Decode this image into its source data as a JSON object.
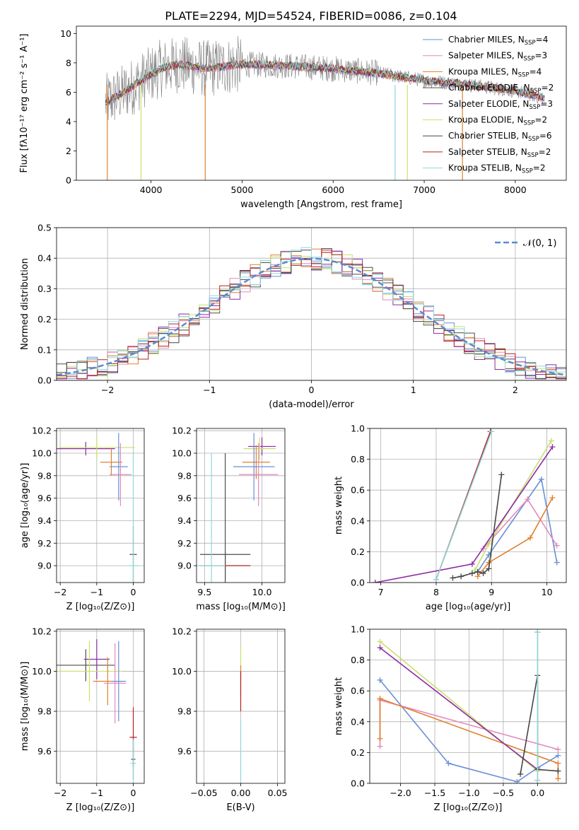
{
  "page_title": "PLATE=2294, MJD=54524, FIBERID=0086, z=0.104",
  "palette": [
    "#6a8fd6",
    "#e589bd",
    "#e0802d",
    "#4d4d4d",
    "#8e2aa2",
    "#c8e06b",
    "#464646",
    "#b22222",
    "#8ed8db"
  ],
  "chart_data": [
    {
      "id": "spectrum",
      "type": "line",
      "title": "PLATE=2294, MJD=54524, FIBERID=0086, z=0.104",
      "xlabel": "wavelength [Angstrom, rest frame]",
      "ylabel": "Flux [fλ10⁻¹⁷ erg cm⁻² s⁻¹ A⁻¹]",
      "xlim": [
        3180,
        8560
      ],
      "ylim": [
        0,
        10.5
      ],
      "xticks": [
        "4000",
        "5000",
        "6000",
        "7000",
        "8000"
      ],
      "xtick_values": [
        4000,
        5000,
        6000,
        7000,
        8000
      ],
      "yticks": [
        "0",
        "2",
        "4",
        "6",
        "8",
        "10"
      ],
      "ytick_values": [
        0,
        2,
        4,
        6,
        8,
        10
      ],
      "continuum_x": [
        3500,
        3700,
        3900,
        4100,
        4300,
        4600,
        5000,
        5500,
        6000,
        6500,
        7000,
        7500,
        8000,
        8320
      ],
      "continuum_y": [
        5.3,
        6.0,
        6.8,
        7.6,
        7.9,
        7.6,
        7.9,
        7.8,
        7.6,
        7.3,
        6.8,
        6.5,
        6.1,
        5.6
      ],
      "series": [
        {
          "name": "Chabrier MILES, N_SSP=4",
          "label_main": "Chabrier MILES, N",
          "label_sub": "SSP",
          "label_end": "=4",
          "color": "#6a8fd6"
        },
        {
          "name": "Salpeter MILES, N_SSP=3",
          "label_main": "Salpeter MILES, N",
          "label_sub": "SSP",
          "label_end": "=3",
          "color": "#e589bd"
        },
        {
          "name": "Kroupa MILES, N_SSP=4",
          "label_main": "Kroupa MILES, N",
          "label_sub": "SSP",
          "label_end": "=4",
          "color": "#e0802d"
        },
        {
          "name": "Chabrier ELODIE, N_SSP=2",
          "label_main": "Chabrier ELODIE, N",
          "label_sub": "SSP",
          "label_end": "=2",
          "color": "#4d4d4d"
        },
        {
          "name": "Salpeter ELODIE, N_SSP=3",
          "label_main": "Salpeter ELODIE, N",
          "label_sub": "SSP",
          "label_end": "=3",
          "color": "#8e2aa2"
        },
        {
          "name": "Kroupa ELODIE, N_SSP=2",
          "label_main": "Kroupa ELODIE, N",
          "label_sub": "SSP",
          "label_end": "=2",
          "color": "#c8e06b"
        },
        {
          "name": "Chabrier STELIB, N_SSP=6",
          "label_main": "Chabrier STELIB, N",
          "label_sub": "SSP",
          "label_end": "=6",
          "color": "#464646"
        },
        {
          "name": "Salpeter STELIB, N_SSP=2",
          "label_main": "Salpeter STELIB, N",
          "label_sub": "SSP",
          "label_end": "=2",
          "color": "#b22222"
        },
        {
          "name": "Kroupa STELIB, N_SSP=2",
          "label_main": "Kroupa STELIB, N",
          "label_sub": "SSP",
          "label_end": "=2",
          "color": "#8ed8db"
        }
      ],
      "legend": "top-right",
      "grid": false
    },
    {
      "id": "residuals",
      "type": "line",
      "xlabel": "(data-model)/error",
      "ylabel": "Normed distribution",
      "xlim": [
        -2.5,
        2.5
      ],
      "ylim": [
        0,
        0.5
      ],
      "xticks": [
        "−2",
        "−1",
        "0",
        "1",
        "2"
      ],
      "xtick_values": [
        -2,
        -1,
        0,
        1,
        2
      ],
      "yticks": [
        "0.0",
        "0.1",
        "0.2",
        "0.3",
        "0.4",
        "0.5"
      ],
      "ytick_values": [
        0,
        0.1,
        0.2,
        0.3,
        0.4,
        0.5
      ],
      "gaussian_label": "𝒩(0, 1)",
      "gaussian_color": "#5b8ad0",
      "bin_width": 0.1,
      "grid": true,
      "legend": "top-right"
    },
    {
      "id": "age-vs-Z",
      "type": "scatter",
      "xlabel": "Z [log₁₀(Z/Z⊙)]",
      "ylabel": "age  [log₁₀(age/yr)]",
      "xlim": [
        -2.1,
        0.3
      ],
      "ylim": [
        8.85,
        10.22
      ],
      "xticks": [
        "−2",
        "−1",
        "0"
      ],
      "xtick_values": [
        -2,
        -1,
        0
      ],
      "yticks": [
        "9.0",
        "9.2",
        "9.4",
        "9.6",
        "9.8",
        "10.0",
        "10.2"
      ],
      "ytick_values": [
        9.0,
        9.2,
        9.4,
        9.6,
        9.8,
        10.0,
        10.2
      ],
      "points": [
        {
          "x": -1.3,
          "y": 10.04,
          "xerr": 0.8,
          "yerr": 0.06,
          "color": "#8e2aa2"
        },
        {
          "x": -1.0,
          "y": 10.05,
          "xerr": 1.05,
          "yerr": 0.1,
          "color": "#c8e06b"
        },
        {
          "x": -0.6,
          "y": 9.92,
          "xerr": 0.3,
          "yerr": 0.12,
          "color": "#e0802d"
        },
        {
          "x": -0.4,
          "y": 9.88,
          "xerr": 0.25,
          "yerr": 0.3,
          "color": "#6a8fd6"
        },
        {
          "x": -0.35,
          "y": 9.81,
          "xerr": 0.3,
          "yerr": 0.28,
          "color": "#e589bd"
        },
        {
          "x": 0.0,
          "y": 9.1,
          "xerr": 0.1,
          "yerr": 0.25,
          "color": "#4d4d4d"
        },
        {
          "x": 0.0,
          "y": 9.0,
          "xerr": 0.12,
          "yerr": 1.0,
          "color": "#8ed8db"
        }
      ],
      "grid": true
    },
    {
      "id": "age-vs-mass",
      "type": "scatter",
      "xlabel": "mass [log₁₀(M/M⊙)]",
      "ylabel": "",
      "xlim": [
        9.43,
        10.2
      ],
      "ylim": [
        8.85,
        10.22
      ],
      "xticks": [
        "9.5",
        "10.0"
      ],
      "xtick_values": [
        9.5,
        10.0
      ],
      "yticks": [
        "9.0",
        "9.2",
        "9.4",
        "9.6",
        "9.8",
        "10.0",
        "10.2"
      ],
      "ytick_values": [
        9.0,
        9.2,
        9.4,
        9.6,
        9.8,
        10.0,
        10.2
      ],
      "points": [
        {
          "x": 10.0,
          "y": 10.06,
          "xerr": 0.12,
          "yerr": 0.08,
          "color": "#8e2aa2"
        },
        {
          "x": 9.98,
          "y": 10.04,
          "xerr": 0.14,
          "yerr": 0.1,
          "color": "#c8e06b"
        },
        {
          "x": 9.95,
          "y": 9.92,
          "xerr": 0.12,
          "yerr": 0.15,
          "color": "#e0802d"
        },
        {
          "x": 9.93,
          "y": 9.88,
          "xerr": 0.18,
          "yerr": 0.3,
          "color": "#6a8fd6"
        },
        {
          "x": 9.97,
          "y": 9.81,
          "xerr": 0.17,
          "yerr": 0.28,
          "color": "#e589bd"
        },
        {
          "x": 9.68,
          "y": 9.0,
          "xerr": 0.22,
          "yerr": 0.12,
          "color": "#b22222"
        },
        {
          "x": 9.68,
          "y": 9.1,
          "xerr": 0.22,
          "yerr": 0.9,
          "color": "#4d4d4d"
        },
        {
          "x": 9.56,
          "y": 9.0,
          "xerr": 0.12,
          "yerr": 1.0,
          "color": "#8ed8db"
        }
      ],
      "grid": true
    },
    {
      "id": "mass-weight-vs-age",
      "type": "line",
      "xlabel": "age  [log₁₀(age/yr)]",
      "ylabel": "mass weight",
      "xlim": [
        6.8,
        10.35
      ],
      "ylim": [
        0,
        1.0
      ],
      "xticks": [
        "7",
        "8",
        "9",
        "10"
      ],
      "xtick_values": [
        7,
        8,
        9,
        10
      ],
      "yticks": [
        "0.0",
        "0.2",
        "0.4",
        "0.6",
        "0.8",
        "1.0"
      ],
      "ytick_values": [
        0,
        0.2,
        0.4,
        0.6,
        0.8,
        1.0
      ],
      "series": [
        {
          "color": "#6a8fd6",
          "x": [
            8.75,
            8.95,
            9.9,
            10.18
          ],
          "y": [
            0.07,
            0.18,
            0.67,
            0.13
          ]
        },
        {
          "color": "#e589bd",
          "x": [
            8.85,
            9.65,
            10.18
          ],
          "y": [
            0.22,
            0.54,
            0.24
          ]
        },
        {
          "color": "#e0802d",
          "x": [
            8.75,
            8.95,
            9.7,
            10.1
          ],
          "y": [
            0.04,
            0.13,
            0.29,
            0.55
          ]
        },
        {
          "color": "#c8e06b",
          "x": [
            8.7,
            8.95,
            10.08
          ],
          "y": [
            0.08,
            0.25,
            0.92
          ]
        },
        {
          "color": "#8e2aa2",
          "x": [
            6.9,
            8.65,
            10.1
          ],
          "y": [
            0.0,
            0.12,
            0.88
          ]
        },
        {
          "color": "#464646",
          "x": [
            8.3,
            8.45,
            8.65,
            8.75,
            8.85,
            8.95,
            9.18
          ],
          "y": [
            0.03,
            0.04,
            0.06,
            0.07,
            0.06,
            0.09,
            0.7
          ]
        },
        {
          "color": "#b22222",
          "x": [
            8.0,
            8.98
          ],
          "y": [
            0.02,
            0.98
          ]
        },
        {
          "color": "#8ed8db",
          "x": [
            8.0,
            9.0
          ],
          "y": [
            0.02,
            0.98
          ]
        }
      ],
      "grid": true
    },
    {
      "id": "mass-vs-Z",
      "type": "scatter",
      "xlabel": "Z [log₁₀(Z/Z⊙)]",
      "ylabel": "mass [log₁₀(M/M⊙)]",
      "xlim": [
        -2.1,
        0.3
      ],
      "ylim": [
        9.44,
        10.21
      ],
      "xticks": [
        "−2",
        "−1",
        "0"
      ],
      "xtick_values": [
        -2,
        -1,
        0
      ],
      "yticks": [
        "9.6",
        "9.8",
        "10.0",
        "10.2"
      ],
      "ytick_values": [
        9.6,
        9.8,
        10.0,
        10.2
      ],
      "points": [
        {
          "x": -1.3,
          "y": 10.03,
          "xerr": 0.8,
          "yerr": 0.08,
          "color": "#4d4d4d"
        },
        {
          "x": -1.0,
          "y": 10.06,
          "xerr": 0.35,
          "yerr": 0.1,
          "color": "#8e2aa2"
        },
        {
          "x": -1.2,
          "y": 10.0,
          "xerr": 0.9,
          "yerr": 0.15,
          "color": "#c8e06b"
        },
        {
          "x": -0.7,
          "y": 9.95,
          "xerr": 0.4,
          "yerr": 0.12,
          "color": "#e0802d"
        },
        {
          "x": -0.5,
          "y": 9.94,
          "xerr": 0.3,
          "yerr": 0.2,
          "color": "#e589bd"
        },
        {
          "x": -0.4,
          "y": 9.95,
          "xerr": 0.2,
          "yerr": 0.2,
          "color": "#6a8fd6"
        },
        {
          "x": 0.0,
          "y": 9.67,
          "xerr": 0.1,
          "yerr": 0.15,
          "color": "#b22222"
        },
        {
          "x": 0.0,
          "y": 9.56,
          "xerr": 0.06,
          "yerr": 0.1,
          "color": "#4d4d4d"
        },
        {
          "x": 0.0,
          "y": 9.54,
          "xerr": 0.08,
          "yerr": 0.12,
          "color": "#8ed8db"
        }
      ],
      "grid": true
    },
    {
      "id": "mass-vs-EBV",
      "type": "scatter",
      "xlabel": "E(B-V)",
      "ylabel": "",
      "xlim": [
        -0.06,
        0.06
      ],
      "ylim": [
        9.44,
        10.21
      ],
      "xticks": [
        "−0.05",
        "0.00",
        "0.05"
      ],
      "xtick_values": [
        -0.05,
        0,
        0.05
      ],
      "yticks": [
        "9.6",
        "9.8",
        "10.0",
        "10.2"
      ],
      "ytick_values": [
        9.6,
        9.8,
        10.0,
        10.2
      ],
      "points": [
        {
          "x": 0.0,
          "y": 10.05,
          "xerr": 0,
          "yerr": 0.08,
          "color": "#c8e06b"
        },
        {
          "x": 0.0,
          "y": 9.95,
          "xerr": 0,
          "yerr": 0.08,
          "color": "#e0802d"
        },
        {
          "x": 0.0,
          "y": 9.9,
          "xerr": 0,
          "yerr": 0.1,
          "color": "#b22222"
        },
        {
          "x": 0.0,
          "y": 9.6,
          "xerr": 0,
          "yerr": 0.15,
          "color": "#8ed8db"
        }
      ],
      "grid": true
    },
    {
      "id": "mass-weight-vs-Z",
      "type": "line",
      "xlabel": "Z [log₁₀(Z/Z⊙)]",
      "ylabel": "mass weight",
      "xlim": [
        -2.45,
        0.42
      ],
      "ylim": [
        0,
        1.0
      ],
      "xticks": [
        "−2.0",
        "−1.5",
        "−1.0",
        "−0.5",
        "0.0"
      ],
      "xtick_values": [
        -2,
        -1.5,
        -1,
        -0.5,
        0
      ],
      "yticks": [
        "0.0",
        "0.2",
        "0.4",
        "0.6",
        "0.8",
        "1.0"
      ],
      "ytick_values": [
        0,
        0.2,
        0.4,
        0.6,
        0.8,
        1.0
      ],
      "series": [
        {
          "color": "#6a8fd6",
          "x": [
            -2.3,
            -1.3,
            -0.3,
            0.0,
            0.3
          ],
          "y": [
            0.67,
            0.13,
            0.01,
            0.1,
            0.18
          ]
        },
        {
          "color": "#e589bd",
          "x": [
            -2.3,
            -2.3,
            0.3
          ],
          "y": [
            0.24,
            0.54,
            0.22
          ]
        },
        {
          "color": "#e0802d",
          "x": [
            -2.3,
            -2.3,
            0.3,
            0.3
          ],
          "y": [
            0.29,
            0.55,
            0.13,
            0.03
          ]
        },
        {
          "color": "#c8e06b",
          "x": [
            -2.3,
            0.0
          ],
          "y": [
            0.92,
            0.08
          ]
        },
        {
          "color": "#8e2aa2",
          "x": [
            -2.3,
            0.0
          ],
          "y": [
            0.88,
            0.09
          ]
        },
        {
          "color": "#464646",
          "x": [
            -0.25,
            0.0,
            0.0,
            0.3
          ],
          "y": [
            0.06,
            0.7,
            0.09,
            0.08
          ]
        },
        {
          "color": "#b22222",
          "x": [
            0.0,
            0.0
          ],
          "y": [
            0.02,
            0.98
          ]
        },
        {
          "color": "#8ed8db",
          "x": [
            0.0,
            0.0
          ],
          "y": [
            0.02,
            0.98
          ]
        }
      ],
      "grid": true
    }
  ]
}
